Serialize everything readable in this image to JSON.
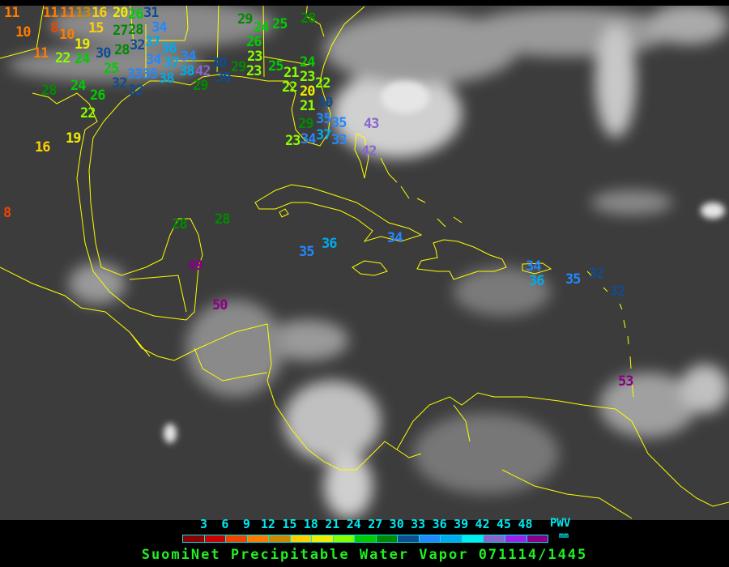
{
  "title": "SuomiNet Precipitable Water Vapor 071114/1445",
  "legend": {
    "unit_top": "PWV",
    "unit_bottom": "mm",
    "ticks": [
      "3",
      "6",
      "9",
      "12",
      "15",
      "18",
      "21",
      "24",
      "27",
      "30",
      "33",
      "36",
      "39",
      "42",
      "45",
      "48"
    ],
    "colors": [
      "#8b0000",
      "#cc0000",
      "#ee4400",
      "#ff7a00",
      "#cc8800",
      "#ffd000",
      "#eeee00",
      "#88ff00",
      "#00cc00",
      "#008a00",
      "#104c90",
      "#2288ff",
      "#00aaee",
      "#00eeee",
      "#8866cc",
      "#9922ee",
      "#880088"
    ]
  },
  "stations": [
    {
      "v": 11
    },
    {
      "v": 11
    },
    {
      "v": 11
    },
    {
      "v": 13
    },
    {
      "v": 16
    },
    {
      "v": 20
    },
    {
      "v": 15
    },
    {
      "v": 10
    },
    {
      "v": 8
    },
    {
      "v": 10
    },
    {
      "v": 19
    },
    {
      "v": 11
    },
    {
      "v": 22
    },
    {
      "v": 24
    },
    {
      "v": 30
    },
    {
      "v": 28
    },
    {
      "v": 27
    },
    {
      "v": 28
    },
    {
      "v": 32
    },
    {
      "v": 26
    },
    {
      "v": 31
    },
    {
      "v": 34
    },
    {
      "v": 37
    },
    {
      "v": 36
    },
    {
      "v": 34
    },
    {
      "v": 37
    },
    {
      "v": 25
    },
    {
      "v": 32
    },
    {
      "v": 33
    },
    {
      "v": 32
    },
    {
      "v": 35
    },
    {
      "v": 38
    },
    {
      "v": 38
    },
    {
      "v": 34
    },
    {
      "v": 42
    },
    {
      "v": 30
    },
    {
      "v": 30
    },
    {
      "v": 29
    },
    {
      "v": 23
    },
    {
      "v": 25
    },
    {
      "v": 21
    },
    {
      "v": 22
    },
    {
      "v": 23
    },
    {
      "v": 22
    },
    {
      "v": 24
    },
    {
      "v": 29
    },
    {
      "v": 28
    },
    {
      "v": 24
    },
    {
      "v": 26
    },
    {
      "v": 22
    },
    {
      "v": 19
    },
    {
      "v": 16
    },
    {
      "v": 29
    },
    {
      "v": 24
    },
    {
      "v": 26
    },
    {
      "v": 23
    },
    {
      "v": 25
    },
    {
      "v": 28
    },
    {
      "v": 20
    },
    {
      "v": 21
    },
    {
      "v": 30
    },
    {
      "v": 35
    },
    {
      "v": 35
    },
    {
      "v": 37
    },
    {
      "v": 34
    },
    {
      "v": 33
    },
    {
      "v": 29
    },
    {
      "v": 23
    },
    {
      "v": 8
    },
    {
      "v": 43
    },
    {
      "v": 42
    },
    {
      "v": 28
    },
    {
      "v": 28
    },
    {
      "v": 35
    },
    {
      "v": 36
    },
    {
      "v": 34
    },
    {
      "v": 34
    },
    {
      "v": 36
    },
    {
      "v": 35
    },
    {
      "v": 32
    },
    {
      "v": 32
    },
    {
      "v": 49
    },
    {
      "v": 50
    },
    {
      "v": 53
    }
  ]
}
